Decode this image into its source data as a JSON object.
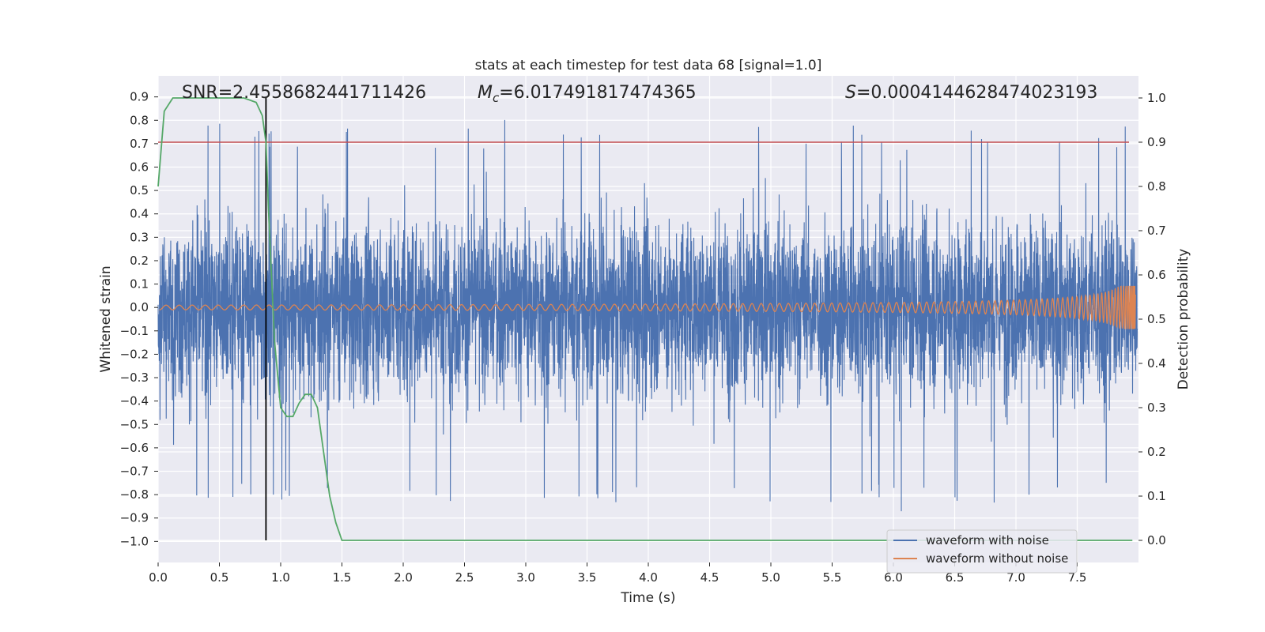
{
  "chart_data": {
    "type": "line",
    "title": "stats at each timestep for test data 68 [signal=1.0]",
    "xlabel": "Time (s)",
    "ylabel": "Whitened strain",
    "ylabel_right": "Detection probability",
    "xlim": [
      0.0,
      8.0
    ],
    "ylim": [
      -1.09,
      0.99
    ],
    "ylim_right": [
      -0.05,
      1.05
    ],
    "x_ticks": [
      "0.0",
      "0.5",
      "1.0",
      "1.5",
      "2.0",
      "2.5",
      "3.0",
      "3.5",
      "4.0",
      "4.5",
      "5.0",
      "5.5",
      "6.0",
      "6.5",
      "7.0",
      "7.5"
    ],
    "y_ticks": [
      "0.9",
      "0.8",
      "0.7",
      "0.6",
      "0.5",
      "0.4",
      "0.3",
      "0.2",
      "0.1",
      "0.0",
      "−0.1",
      "−0.2",
      "−0.3",
      "−0.4",
      "−0.5",
      "−0.6",
      "−0.7",
      "−0.8",
      "−0.9",
      "−1.0"
    ],
    "y_right_ticks": [
      "1.0",
      "0.9",
      "0.8",
      "0.7",
      "0.6",
      "0.5",
      "0.4",
      "0.3",
      "0.2",
      "0.1",
      "0.0"
    ],
    "annotations": {
      "snr": "SNR=2.4558682441711426",
      "mc_symbol": "M",
      "mc_subscript": "c",
      "mc_value": "=6.017491817474365",
      "s_symbol": "S",
      "s_value": "=0.0004144628474023193"
    },
    "threshold_probability": 0.9,
    "detection_time": 0.88,
    "series": [
      {
        "name": "waveform with noise",
        "color": "#4c72b0",
        "axis": "left",
        "note": "dense whitened noise, approx range -1.0 to 0.9"
      },
      {
        "name": "waveform without noise",
        "color": "#dd8452",
        "axis": "left",
        "note": "chirp, amplitude grows toward t=8s"
      },
      {
        "name": "detection probability",
        "color": "#55a868",
        "axis": "right",
        "x": [
          0.0,
          0.05,
          0.12,
          0.3,
          0.5,
          0.7,
          0.8,
          0.85,
          0.88,
          0.9,
          0.95,
          1.0,
          1.05,
          1.1,
          1.15,
          1.2,
          1.25,
          1.3,
          1.35,
          1.4,
          1.45,
          1.5,
          1.55,
          2.0,
          4.0,
          6.0,
          7.0,
          7.5,
          7.95
        ],
        "values": [
          0.8,
          0.97,
          1.0,
          1.0,
          1.0,
          1.0,
          0.99,
          0.96,
          0.9,
          0.75,
          0.45,
          0.3,
          0.28,
          0.28,
          0.31,
          0.33,
          0.33,
          0.3,
          0.2,
          0.1,
          0.04,
          0.0,
          0.0,
          0.0,
          0.0,
          0.0,
          0.0,
          0.0,
          0.0
        ]
      }
    ],
    "legend": {
      "position": "bottom-right",
      "entries": [
        {
          "label": "waveform with noise",
          "color": "#4c72b0"
        },
        {
          "label": "waveform without noise",
          "color": "#dd8452"
        }
      ]
    },
    "colors": {
      "background": "#eaeaf2",
      "grid": "#ffffff",
      "threshold": "#c44e52",
      "marker": "#000000"
    }
  }
}
